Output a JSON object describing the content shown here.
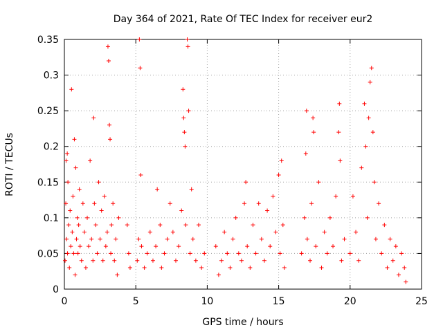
{
  "chart_data": {
    "type": "scatter",
    "title": "Day 364 of 2021, Rate Of TEC Index for receiver eur2",
    "xlabel": "GPS time / hours",
    "ylabel": "ROTI / TECUs",
    "xlim": [
      0,
      25
    ],
    "ylim": [
      0,
      0.35
    ],
    "xticks": [
      0,
      5,
      10,
      15,
      20,
      25
    ],
    "yticks": [
      0,
      0.05,
      0.1,
      0.15,
      0.2,
      0.25,
      0.3,
      0.35
    ],
    "xtick_labels": [
      "0",
      "5",
      "10",
      "15",
      "20",
      "25"
    ],
    "ytick_labels": [
      "0",
      "0.05",
      "0.1",
      "0.15",
      "0.2",
      "0.25",
      "0.3",
      "0.35"
    ],
    "grid": true,
    "marker": "plus",
    "color": "#ff0000",
    "series": [
      {
        "name": "eur2",
        "points": [
          [
            0.05,
            0.04
          ],
          [
            0.1,
            0.12
          ],
          [
            0.12,
            0.18
          ],
          [
            0.15,
            0.07
          ],
          [
            0.2,
            0.19
          ],
          [
            0.22,
            0.05
          ],
          [
            0.25,
            0.15
          ],
          [
            0.3,
            0.09
          ],
          [
            0.35,
            0.03
          ],
          [
            0.4,
            0.11
          ],
          [
            0.45,
            0.06
          ],
          [
            0.5,
            0.28
          ],
          [
            0.55,
            0.08
          ],
          [
            0.6,
            0.13
          ],
          [
            0.65,
            0.05
          ],
          [
            0.7,
            0.21
          ],
          [
            0.75,
            0.02
          ],
          [
            0.8,
            0.17
          ],
          [
            0.85,
            0.07
          ],
          [
            0.9,
            0.1
          ],
          [
            0.95,
            0.05
          ],
          [
            1.0,
            0.09
          ],
          [
            1.05,
            0.14
          ],
          [
            1.1,
            0.06
          ],
          [
            1.2,
            0.04
          ],
          [
            1.3,
            0.12
          ],
          [
            1.4,
            0.08
          ],
          [
            1.5,
            0.03
          ],
          [
            1.6,
            0.1
          ],
          [
            1.7,
            0.06
          ],
          [
            1.8,
            0.18
          ],
          [
            1.9,
            0.07
          ],
          [
            2.0,
            0.04
          ],
          [
            2.05,
            0.24
          ],
          [
            2.1,
            0.12
          ],
          [
            2.2,
            0.09
          ],
          [
            2.3,
            0.05
          ],
          [
            2.4,
            0.15
          ],
          [
            2.5,
            0.07
          ],
          [
            2.6,
            0.11
          ],
          [
            2.7,
            0.04
          ],
          [
            2.8,
            0.13
          ],
          [
            2.9,
            0.06
          ],
          [
            3.0,
            0.08
          ],
          [
            3.05,
            0.34
          ],
          [
            3.1,
            0.32
          ],
          [
            3.15,
            0.23
          ],
          [
            3.2,
            0.21
          ],
          [
            3.25,
            0.05
          ],
          [
            3.3,
            0.09
          ],
          [
            3.4,
            0.12
          ],
          [
            3.5,
            0.04
          ],
          [
            3.6,
            0.07
          ],
          [
            3.7,
            0.02
          ],
          [
            3.8,
            0.1
          ],
          [
            4.4,
            0.09
          ],
          [
            4.5,
            0.05
          ],
          [
            4.6,
            0.03
          ],
          [
            5.1,
            0.04
          ],
          [
            5.2,
            0.07
          ],
          [
            5.25,
            0.35
          ],
          [
            5.3,
            0.31
          ],
          [
            5.35,
            0.16
          ],
          [
            5.4,
            0.06
          ],
          [
            5.6,
            0.03
          ],
          [
            5.8,
            0.05
          ],
          [
            6.0,
            0.08
          ],
          [
            6.2,
            0.04
          ],
          [
            6.4,
            0.06
          ],
          [
            6.5,
            0.14
          ],
          [
            6.7,
            0.09
          ],
          [
            6.8,
            0.03
          ],
          [
            7.0,
            0.05
          ],
          [
            7.2,
            0.07
          ],
          [
            7.4,
            0.12
          ],
          [
            7.6,
            0.08
          ],
          [
            7.8,
            0.04
          ],
          [
            8.0,
            0.06
          ],
          [
            8.2,
            0.11
          ],
          [
            8.3,
            0.28
          ],
          [
            8.35,
            0.24
          ],
          [
            8.4,
            0.22
          ],
          [
            8.45,
            0.2
          ],
          [
            8.5,
            0.09
          ],
          [
            8.6,
            0.35
          ],
          [
            8.65,
            0.34
          ],
          [
            8.7,
            0.25
          ],
          [
            8.8,
            0.05
          ],
          [
            8.9,
            0.14
          ],
          [
            9.0,
            0.07
          ],
          [
            9.2,
            0.04
          ],
          [
            9.4,
            0.09
          ],
          [
            9.6,
            0.03
          ],
          [
            9.8,
            0.05
          ],
          [
            10.6,
            0.06
          ],
          [
            10.8,
            0.02
          ],
          [
            11.0,
            0.04
          ],
          [
            11.2,
            0.08
          ],
          [
            11.4,
            0.05
          ],
          [
            11.6,
            0.03
          ],
          [
            11.8,
            0.07
          ],
          [
            12.0,
            0.1
          ],
          [
            12.2,
            0.05
          ],
          [
            12.4,
            0.04
          ],
          [
            12.6,
            0.12
          ],
          [
            12.7,
            0.15
          ],
          [
            12.8,
            0.06
          ],
          [
            13.0,
            0.03
          ],
          [
            13.2,
            0.09
          ],
          [
            13.4,
            0.05
          ],
          [
            13.6,
            0.12
          ],
          [
            13.8,
            0.07
          ],
          [
            14.0,
            0.04
          ],
          [
            14.2,
            0.11
          ],
          [
            14.4,
            0.06
          ],
          [
            14.6,
            0.13
          ],
          [
            14.8,
            0.08
          ],
          [
            15.0,
            0.16
          ],
          [
            15.1,
            0.05
          ],
          [
            15.2,
            0.18
          ],
          [
            15.3,
            0.09
          ],
          [
            15.4,
            0.03
          ],
          [
            16.6,
            0.05
          ],
          [
            16.8,
            0.1
          ],
          [
            16.9,
            0.19
          ],
          [
            16.95,
            0.25
          ],
          [
            17.0,
            0.07
          ],
          [
            17.2,
            0.04
          ],
          [
            17.3,
            0.12
          ],
          [
            17.4,
            0.24
          ],
          [
            17.45,
            0.22
          ],
          [
            17.6,
            0.06
          ],
          [
            17.8,
            0.15
          ],
          [
            18.0,
            0.03
          ],
          [
            18.2,
            0.08
          ],
          [
            18.4,
            0.05
          ],
          [
            18.6,
            0.1
          ],
          [
            18.8,
            0.06
          ],
          [
            19.0,
            0.13
          ],
          [
            19.2,
            0.22
          ],
          [
            19.25,
            0.26
          ],
          [
            19.3,
            0.18
          ],
          [
            19.4,
            0.04
          ],
          [
            19.6,
            0.07
          ],
          [
            20.0,
            0.05
          ],
          [
            20.2,
            0.13
          ],
          [
            20.4,
            0.08
          ],
          [
            20.6,
            0.04
          ],
          [
            20.8,
            0.17
          ],
          [
            21.0,
            0.26
          ],
          [
            21.1,
            0.2
          ],
          [
            21.2,
            0.1
          ],
          [
            21.3,
            0.24
          ],
          [
            21.4,
            0.29
          ],
          [
            21.5,
            0.31
          ],
          [
            21.6,
            0.22
          ],
          [
            21.7,
            0.15
          ],
          [
            21.8,
            0.07
          ],
          [
            22.0,
            0.12
          ],
          [
            22.2,
            0.05
          ],
          [
            22.4,
            0.09
          ],
          [
            22.6,
            0.03
          ],
          [
            22.8,
            0.07
          ],
          [
            23.0,
            0.04
          ],
          [
            23.2,
            0.06
          ],
          [
            23.4,
            0.02
          ],
          [
            23.6,
            0.05
          ],
          [
            23.8,
            0.03
          ],
          [
            23.9,
            0.01
          ]
        ]
      }
    ]
  }
}
